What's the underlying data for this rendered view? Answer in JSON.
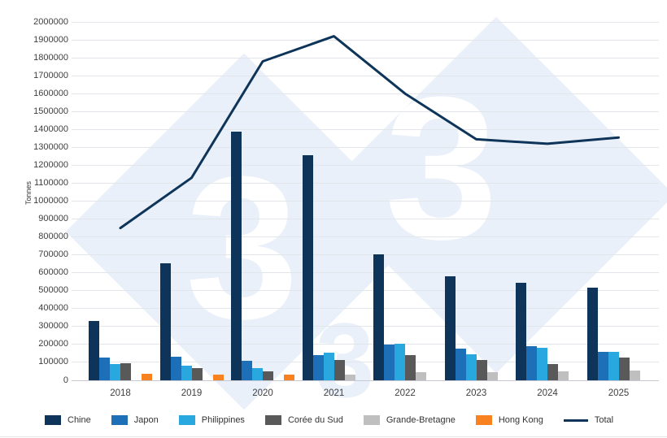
{
  "ylabel": "Tonnes",
  "watermark_digit": "3",
  "chart_data": {
    "type": "bar",
    "title": "",
    "xlabel": "",
    "ylabel": "Tonnes",
    "ylim": [
      0,
      2000000
    ],
    "ytick_step": 100000,
    "grid": true,
    "legend_position": "bottom",
    "categories": [
      "2018",
      "2019",
      "2020",
      "2021",
      "2022",
      "2023",
      "2024",
      "2025"
    ],
    "series": [
      {
        "name": "Chine",
        "type": "bar",
        "color": "#0E3559",
        "values": [
          330000,
          655000,
          1390000,
          1255000,
          705000,
          580000,
          545000,
          515000
        ]
      },
      {
        "name": "Japon",
        "type": "bar",
        "color": "#1D70B8",
        "values": [
          125000,
          130000,
          110000,
          140000,
          200000,
          175000,
          190000,
          160000
        ]
      },
      {
        "name": "Philippines",
        "type": "bar",
        "color": "#29A8E0",
        "values": [
          90000,
          80000,
          70000,
          155000,
          205000,
          145000,
          180000,
          160000
        ]
      },
      {
        "name": "Corée du Sud",
        "type": "bar",
        "color": "#595959",
        "values": [
          95000,
          70000,
          50000,
          115000,
          140000,
          115000,
          90000,
          125000
        ]
      },
      {
        "name": "Grande-Bretagne",
        "type": "bar",
        "color": "#BFBFBF",
        "values": [
          0,
          0,
          0,
          30000,
          45000,
          45000,
          50000,
          55000
        ]
      },
      {
        "name": "Hong Kong",
        "type": "bar",
        "color": "#F8821F",
        "values": [
          35000,
          30000,
          30000,
          0,
          0,
          0,
          0,
          0
        ]
      },
      {
        "name": "Total",
        "type": "line",
        "color": "#0E3559",
        "values": [
          850000,
          1130000,
          1780000,
          1920000,
          1600000,
          1345000,
          1320000,
          1355000
        ]
      }
    ]
  }
}
